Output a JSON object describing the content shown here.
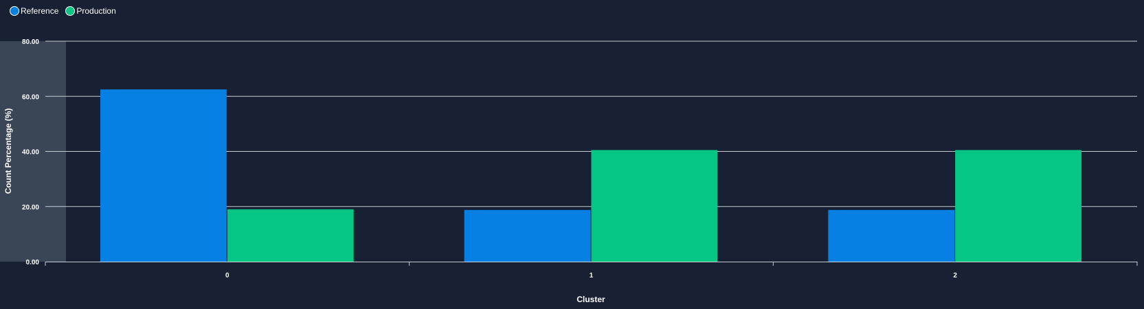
{
  "chart_data": {
    "type": "bar",
    "categories": [
      "0",
      "1",
      "2"
    ],
    "series": [
      {
        "name": "Reference",
        "values": [
          62.5,
          18.75,
          18.75
        ],
        "color": "#0680e3"
      },
      {
        "name": "Production",
        "values": [
          19.0,
          40.5,
          40.5
        ],
        "color": "#05c685"
      }
    ],
    "xlabel": "Cluster",
    "ylabel": "Count Percentage (%)",
    "ylim": [
      0,
      80
    ],
    "yticks": [
      "0.00",
      "20.00",
      "40.00",
      "60.00",
      "80.00"
    ],
    "grid": true,
    "legend_position": "top-left"
  }
}
